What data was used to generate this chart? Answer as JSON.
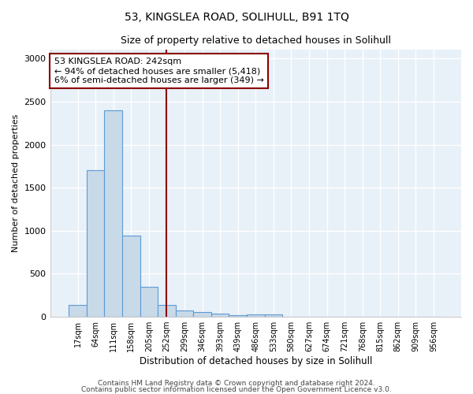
{
  "title": "53, KINGSLEA ROAD, SOLIHULL, B91 1TQ",
  "subtitle": "Size of property relative to detached houses in Solihull",
  "xlabel": "Distribution of detached houses by size in Solihull",
  "ylabel": "Number of detached properties",
  "bar_labels": [
    "17sqm",
    "64sqm",
    "111sqm",
    "158sqm",
    "205sqm",
    "252sqm",
    "299sqm",
    "346sqm",
    "393sqm",
    "439sqm",
    "486sqm",
    "533sqm",
    "580sqm",
    "627sqm",
    "674sqm",
    "721sqm",
    "768sqm",
    "815sqm",
    "862sqm",
    "909sqm",
    "956sqm"
  ],
  "bar_values": [
    140,
    1700,
    2400,
    940,
    350,
    140,
    75,
    55,
    35,
    20,
    30,
    30,
    0,
    0,
    0,
    0,
    0,
    0,
    0,
    0,
    0
  ],
  "bar_color": "#c8d9e8",
  "bar_edgecolor": "#5b9bd5",
  "bar_linewidth": 0.8,
  "vline_x_index": 5,
  "vline_color": "#8b0000",
  "vline_linewidth": 1.5,
  "annotation_text": "53 KINGSLEA ROAD: 242sqm\n← 94% of detached houses are smaller (5,418)\n6% of semi-detached houses are larger (349) →",
  "annotation_box_edgecolor": "#8b0000",
  "annotation_box_facecolor": "#ffffff",
  "ylim": [
    0,
    3100
  ],
  "yticks": [
    0,
    500,
    1000,
    1500,
    2000,
    2500,
    3000
  ],
  "footer1": "Contains HM Land Registry data © Crown copyright and database right 2024.",
  "footer2": "Contains public sector information licensed under the Open Government Licence v3.0.",
  "background_color": "#ffffff",
  "plot_background_color": "#e8f0f8",
  "grid_color": "#ffffff",
  "title_fontsize": 10,
  "subtitle_fontsize": 9,
  "footer_fontsize": 6.5
}
